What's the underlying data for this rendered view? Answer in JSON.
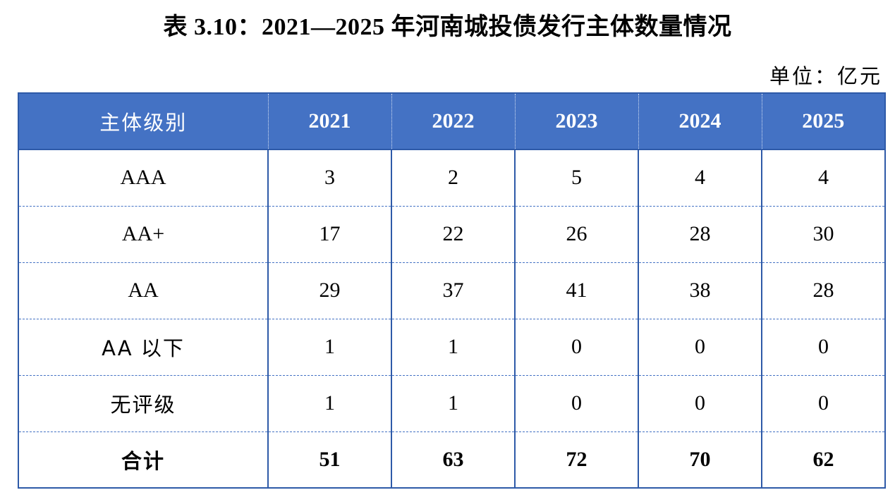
{
  "title": "表 3.10：2021—2025 年河南城投债发行主体数量情况",
  "unit": "单位：亿元",
  "table": {
    "header": {
      "label": "主体级别",
      "years": [
        "2021",
        "2022",
        "2023",
        "2024",
        "2025"
      ]
    },
    "rows": [
      {
        "label": "AAA",
        "values": [
          "3",
          "2",
          "5",
          "4",
          "4"
        ]
      },
      {
        "label": "AA+",
        "values": [
          "17",
          "22",
          "26",
          "28",
          "30"
        ]
      },
      {
        "label": "AA",
        "values": [
          "29",
          "37",
          "41",
          "38",
          "28"
        ]
      },
      {
        "label": "AA 以下",
        "values": [
          "1",
          "1",
          "0",
          "0",
          "0"
        ]
      },
      {
        "label": "无评级",
        "values": [
          "1",
          "1",
          "0",
          "0",
          "0"
        ]
      }
    ],
    "total": {
      "label": "合计",
      "values": [
        "51",
        "63",
        "72",
        "70",
        "62"
      ]
    }
  },
  "colors": {
    "header_background": "#4472c4",
    "header_text": "#ffffff",
    "border": "#2e5aa8"
  }
}
